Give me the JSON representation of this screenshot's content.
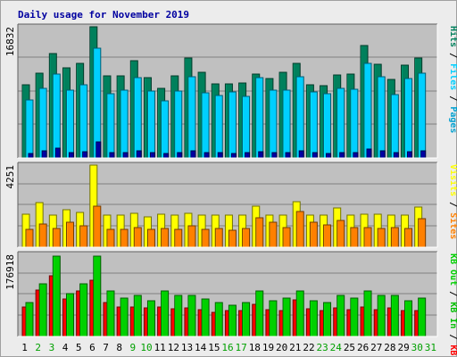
{
  "chart_data": [
    {
      "type": "bar",
      "panel": "pages-files-hits",
      "title": "Daily usage for November 2019",
      "y_max_label": "16832",
      "ylim": [
        0,
        16832
      ],
      "categories": [
        "1",
        "2",
        "3",
        "4",
        "5",
        "6",
        "7",
        "8",
        "9",
        "10",
        "11",
        "12",
        "13",
        "14",
        "15",
        "16",
        "17",
        "18",
        "19",
        "20",
        "21",
        "22",
        "23",
        "24",
        "25",
        "26",
        "27",
        "28",
        "29",
        "30",
        "31"
      ],
      "legend": [
        "Hits",
        "Files",
        "Pages"
      ],
      "legend_separator": "/",
      "series": [
        {
          "name": "Hits",
          "color": "#00805c",
          "values": [
            9300,
            10800,
            13300,
            11500,
            12100,
            16700,
            10500,
            10500,
            12400,
            10200,
            8900,
            10500,
            12700,
            10900,
            9400,
            9400,
            9500,
            10700,
            10100,
            10900,
            12000,
            9300,
            9200,
            10600,
            10700,
            14300,
            11900,
            10000,
            11800,
            12700,
            0
          ]
        },
        {
          "name": "Files",
          "color": "#00cfff",
          "values": [
            7400,
            8900,
            10700,
            8600,
            9300,
            14000,
            8200,
            8700,
            10200,
            8500,
            7300,
            8500,
            10300,
            8300,
            8000,
            8400,
            7900,
            10200,
            8600,
            8600,
            10400,
            8400,
            8200,
            8900,
            8800,
            12100,
            10300,
            8100,
            10100,
            10800,
            0
          ]
        },
        {
          "name": "Pages",
          "color": "#0000a0",
          "values": [
            600,
            900,
            1200,
            700,
            800,
            2000,
            650,
            700,
            900,
            700,
            600,
            700,
            900,
            700,
            650,
            600,
            650,
            800,
            700,
            700,
            900,
            650,
            600,
            700,
            700,
            1100,
            900,
            650,
            800,
            900,
            0
          ]
        }
      ]
    },
    {
      "type": "bar",
      "panel": "visits-sites",
      "y_max_label": "4251",
      "ylim": [
        0,
        4251
      ],
      "categories": [
        "1",
        "2",
        "3",
        "4",
        "5",
        "6",
        "7",
        "8",
        "9",
        "10",
        "11",
        "12",
        "13",
        "14",
        "15",
        "16",
        "17",
        "18",
        "19",
        "20",
        "21",
        "22",
        "23",
        "24",
        "25",
        "26",
        "27",
        "28",
        "29",
        "30",
        "31"
      ],
      "legend": [
        "Visits",
        "Sites"
      ],
      "legend_separator": "/",
      "series": [
        {
          "name": "Visits",
          "color": "#ffff00",
          "values": [
            1700,
            2300,
            1650,
            1900,
            1800,
            4200,
            1650,
            1650,
            1750,
            1550,
            1700,
            1650,
            1750,
            1650,
            1650,
            1650,
            1650,
            2100,
            1650,
            1650,
            2350,
            1650,
            1650,
            2000,
            1650,
            1700,
            1700,
            1650,
            1650,
            2050,
            0
          ]
        },
        {
          "name": "Sites",
          "color": "#ff8000",
          "values": [
            900,
            1200,
            950,
            1300,
            1100,
            2100,
            900,
            900,
            1000,
            900,
            950,
            900,
            1100,
            900,
            950,
            850,
            950,
            1500,
            1300,
            1000,
            1850,
            1300,
            1150,
            1350,
            1000,
            1000,
            950,
            1000,
            950,
            1450,
            0
          ]
        }
      ]
    },
    {
      "type": "bar",
      "panel": "kbin-kbout-kbf",
      "y_max_label": "176918",
      "ylim": [
        0,
        176918
      ],
      "categories": [
        "1",
        "2",
        "3",
        "4",
        "5",
        "6",
        "7",
        "8",
        "9",
        "10",
        "11",
        "12",
        "13",
        "14",
        "15",
        "16",
        "17",
        "18",
        "19",
        "20",
        "21",
        "22",
        "23",
        "24",
        "25",
        "26",
        "27",
        "28",
        "29",
        "30",
        "31"
      ],
      "legend": [
        "KB F",
        "KB In",
        "KB Out"
      ],
      "legend_separator": "/",
      "series": [
        {
          "name": "KB F",
          "color": "#ff0000",
          "values": [
            62000,
            98000,
            130000,
            80000,
            97000,
            120000,
            72000,
            62000,
            62000,
            60000,
            62000,
            59000,
            60000,
            58000,
            52000,
            55000,
            56000,
            68000,
            58000,
            56000,
            78000,
            59000,
            56000,
            60000,
            58000,
            62000,
            58000,
            60000,
            56000,
            56000,
            0
          ]
        },
        {
          "name": "KB In",
          "color": "#00c000",
          "values": [
            0,
            0,
            0,
            0,
            0,
            0,
            0,
            0,
            0,
            0,
            0,
            0,
            0,
            0,
            0,
            0,
            0,
            0,
            0,
            0,
            0,
            0,
            0,
            0,
            0,
            0,
            0,
            0,
            0,
            0,
            0
          ]
        },
        {
          "name": "KB Out",
          "color": "#00d000",
          "values": [
            72000,
            112000,
            172000,
            92000,
            112000,
            172000,
            97000,
            82000,
            87000,
            77000,
            97000,
            87000,
            87000,
            79000,
            72000,
            67000,
            72000,
            97000,
            77000,
            82000,
            97000,
            77000,
            72000,
            87000,
            82000,
            97000,
            87000,
            87000,
            77000,
            82000,
            0
          ]
        }
      ]
    }
  ],
  "x_label_colors": {
    "weekday": "#00a000",
    "weekend": "#000000"
  },
  "weekend_days": [
    "2",
    "3",
    "9",
    "10",
    "16",
    "17",
    "23",
    "24",
    "30",
    "31"
  ],
  "frame_colors": {
    "panel_bg": "#c0c0c0",
    "grid": "#808080",
    "title": "#0000a0"
  }
}
